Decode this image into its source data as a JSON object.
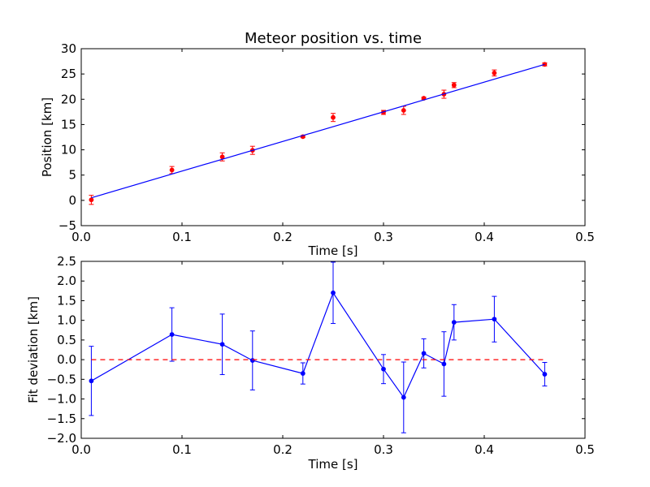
{
  "chart_data": [
    {
      "type": "scatter",
      "title": "Meteor position vs. time",
      "xlabel": "Time [s]",
      "ylabel": "Position [km]",
      "xlim": [
        0.0,
        0.5
      ],
      "ylim": [
        -5,
        30
      ],
      "xticks": [
        0.0,
        0.1,
        0.2,
        0.3,
        0.4,
        0.5
      ],
      "xtick_labels": [
        "0.0",
        "0.1",
        "0.2",
        "0.3",
        "0.4",
        "0.5"
      ],
      "yticks": [
        -5,
        0,
        5,
        10,
        15,
        20,
        25,
        30
      ],
      "ytick_labels": [
        "−5",
        "0",
        "5",
        "10",
        "15",
        "20",
        "25",
        "30"
      ],
      "grid": false,
      "series": [
        {
          "style": "points-with-errorbars",
          "color": "#ff0000",
          "x": [
            0.01,
            0.09,
            0.14,
            0.17,
            0.22,
            0.25,
            0.3,
            0.32,
            0.34,
            0.36,
            0.37,
            0.41,
            0.46
          ],
          "y": [
            0.1,
            6.0,
            8.6,
            9.9,
            12.6,
            16.4,
            17.4,
            17.8,
            20.2,
            21.0,
            22.8,
            25.2,
            26.9
          ],
          "yerr": [
            0.9,
            0.7,
            0.8,
            0.8,
            0.2,
            0.8,
            0.4,
            0.8,
            0.2,
            0.8,
            0.5,
            0.6,
            0.3
          ]
        },
        {
          "style": "line",
          "color": "#0000ff",
          "x": [
            0.01,
            0.46
          ],
          "y": [
            0.5,
            26.9
          ]
        }
      ]
    },
    {
      "type": "line",
      "xlabel": "Time [s]",
      "ylabel": "Fit deviation [km]",
      "xlim": [
        0.0,
        0.5
      ],
      "ylim": [
        -2.0,
        2.5
      ],
      "xticks": [
        0.0,
        0.1,
        0.2,
        0.3,
        0.4,
        0.5
      ],
      "xtick_labels": [
        "0.0",
        "0.1",
        "0.2",
        "0.3",
        "0.4",
        "0.5"
      ],
      "yticks": [
        -2.0,
        -1.5,
        -1.0,
        -0.5,
        0.0,
        0.5,
        1.0,
        1.5,
        2.0,
        2.5
      ],
      "ytick_labels": [
        "−2.0",
        "−1.5",
        "−1.0",
        "−0.5",
        "0.0",
        "0.5",
        "1.0",
        "1.5",
        "2.0",
        "2.5"
      ],
      "grid": false,
      "series": [
        {
          "style": "line-points-with-errorbars",
          "color": "#0000ff",
          "x": [
            0.01,
            0.09,
            0.14,
            0.17,
            0.22,
            0.25,
            0.3,
            0.32,
            0.34,
            0.36,
            0.37,
            0.41,
            0.46
          ],
          "y": [
            -0.54,
            0.64,
            0.39,
            -0.02,
            -0.35,
            1.7,
            -0.24,
            -0.96,
            0.16,
            -0.11,
            0.95,
            1.03,
            -0.37
          ],
          "yerr": [
            0.88,
            0.68,
            0.77,
            0.75,
            0.27,
            0.78,
            0.37,
            0.9,
            0.37,
            0.82,
            0.45,
            0.58,
            0.3
          ]
        },
        {
          "style": "dashed-line",
          "color": "#ff0000",
          "x": [
            0.01,
            0.46
          ],
          "y": [
            0.0,
            0.0
          ]
        }
      ]
    }
  ]
}
